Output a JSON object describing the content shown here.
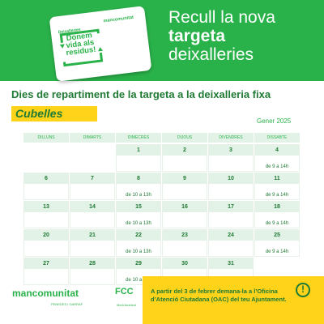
{
  "card": {
    "small_label": "Deixalleries",
    "big_text_l1": "Donem",
    "big_text_l2": "vida als",
    "big_text_l3": "residus!",
    "brand": "mancomunitat"
  },
  "headline": {
    "line1": "Recull la nova",
    "line2": "targeta",
    "line3": "deixalleries"
  },
  "title": "Dies de repartiment de la targeta a la deixalleria fixa",
  "town": "Cubelles",
  "month": "Gener 2025",
  "weekdays": [
    "DILLUNS",
    "DIMARTS",
    "DIMECRES",
    "DIJOUS",
    "DIVENDRES",
    "DISSABTE"
  ],
  "weeks": [
    [
      "",
      "",
      "1",
      "2",
      "3",
      "4"
    ],
    [
      "6",
      "7",
      "8",
      "9",
      "10",
      "11"
    ],
    [
      "13",
      "14",
      "15",
      "16",
      "17",
      "18"
    ],
    [
      "20",
      "21",
      "22",
      "23",
      "24",
      "25"
    ],
    [
      "27",
      "28",
      "29",
      "30",
      "31",
      ""
    ]
  ],
  "hours": {
    "saturday": "de 9 a 14h",
    "wednesday": "de 10 a 13h"
  },
  "footer": {
    "logo": "mancomunitat",
    "sub": "PENEDÈS I GARRAF",
    "fcc": "FCC",
    "fcc_sub": "Medi Ambient"
  },
  "notice": {
    "text": "A partir del 3 de febrer demana-la a l’Oficina d’Atenció Ciutadana (OAC) del teu Ajuntament."
  },
  "colors": {
    "green": "#2ab24a",
    "dark_green": "#1f7a34",
    "light_green": "#e3f2e6",
    "yellow": "#ffd31a"
  }
}
